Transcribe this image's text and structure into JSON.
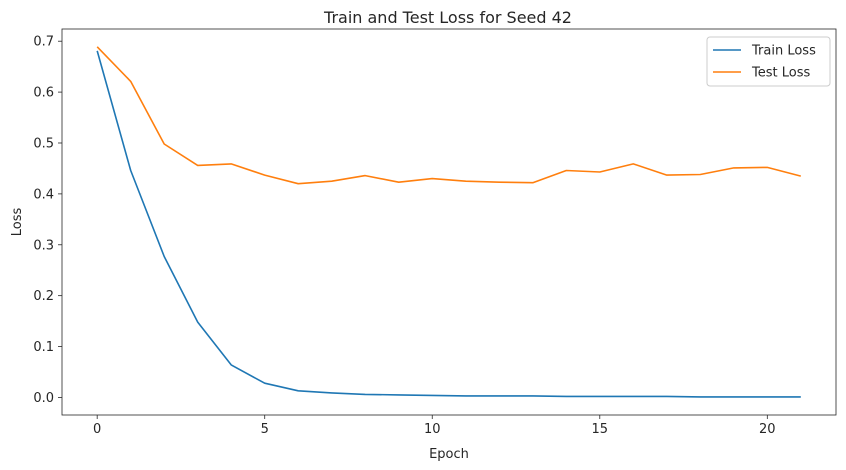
{
  "chart_data": {
    "type": "line",
    "title": "Train and Test Loss for Seed 42",
    "xlabel": "Epoch",
    "ylabel": "Loss",
    "xlim": [
      -1.05,
      22.05
    ],
    "ylim": [
      -0.0345,
      0.724
    ],
    "xticks": [
      0,
      5,
      10,
      15,
      20
    ],
    "yticks": [
      0.0,
      0.1,
      0.2,
      0.3,
      0.4,
      0.5,
      0.6,
      0.7
    ],
    "ytick_labels": [
      "0.0",
      "0.1",
      "0.2",
      "0.3",
      "0.4",
      "0.5",
      "0.6",
      "0.7"
    ],
    "grid": false,
    "legend_position": "top-right",
    "x": [
      0,
      1,
      2,
      3,
      4,
      5,
      6,
      7,
      8,
      9,
      10,
      11,
      12,
      13,
      14,
      15,
      16,
      17,
      18,
      19,
      20,
      21
    ],
    "series": [
      {
        "name": "Train Loss",
        "color": "#1f77b4",
        "values": [
          0.681,
          0.446,
          0.277,
          0.148,
          0.064,
          0.028,
          0.013,
          0.009,
          0.006,
          0.005,
          0.004,
          0.003,
          0.003,
          0.003,
          0.002,
          0.002,
          0.002,
          0.002,
          0.001,
          0.001,
          0.001,
          0.001
        ]
      },
      {
        "name": "Test Loss",
        "color": "#ff7f0e",
        "values": [
          0.689,
          0.621,
          0.498,
          0.456,
          0.459,
          0.437,
          0.42,
          0.425,
          0.436,
          0.423,
          0.43,
          0.425,
          0.423,
          0.422,
          0.446,
          0.443,
          0.459,
          0.437,
          0.438,
          0.451,
          0.452,
          0.435
        ]
      }
    ]
  }
}
